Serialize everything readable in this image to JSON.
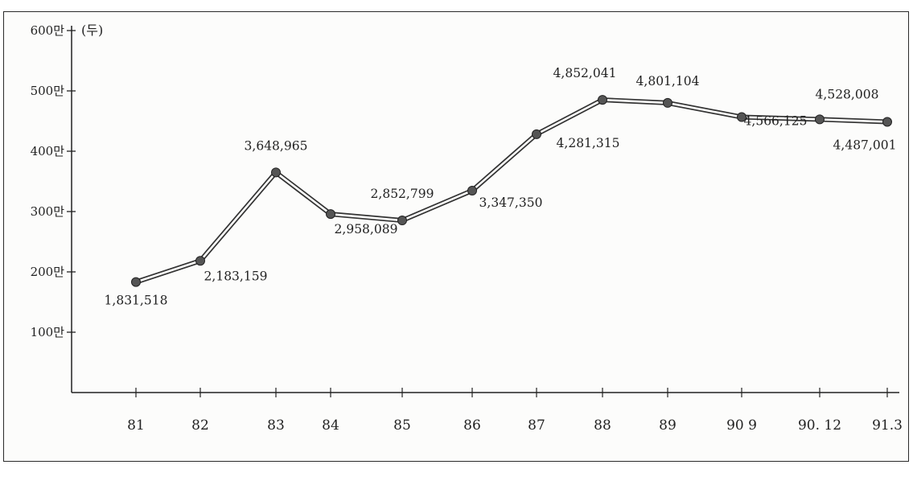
{
  "chart_data": {
    "type": "line",
    "unit_label": "(두)",
    "categories": [
      "81",
      "82",
      "83",
      "84",
      "85",
      "86",
      "87",
      "88",
      "89",
      "90 9",
      "90. 12",
      "91.3"
    ],
    "values": [
      1831518,
      2183159,
      3648965,
      2958089,
      2852799,
      3347350,
      4281315,
      4852041,
      4801104,
      4566125,
      4528008,
      4487001
    ],
    "data_labels": [
      "1,831,518",
      "2,183,159",
      "3,648,965",
      "2,958,089",
      "2,852,799",
      "3,347,350",
      "4,281,315",
      "4,852,041",
      "4,801,104",
      "4,566,125",
      "4,528,008",
      "4,487,001"
    ],
    "y_ticks": [
      {
        "value": 1000000,
        "label": "100만"
      },
      {
        "value": 2000000,
        "label": "200만"
      },
      {
        "value": 3000000,
        "label": "300만"
      },
      {
        "value": 4000000,
        "label": "400만"
      },
      {
        "value": 5000000,
        "label": "500만"
      },
      {
        "value": 6000000,
        "label": "600만"
      }
    ],
    "ylim": [
      0,
      6000000
    ],
    "grid": false,
    "legend": "none",
    "colors": {
      "line": "#333333",
      "marker": "#555555",
      "text": "#222222"
    }
  }
}
